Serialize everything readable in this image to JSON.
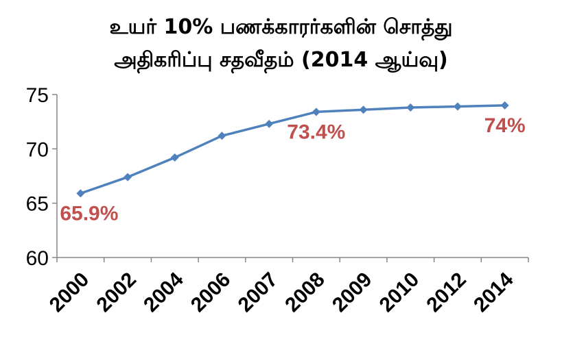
{
  "chart_data": {
    "type": "line",
    "title_line1": "உயர் 10% பணக்காரர்களின் சொத்து",
    "title_line2": "அதிகரிப்பு சதவீதம் (2014 ஆய்வு)",
    "categories": [
      "2000",
      "2002",
      "2004",
      "2006",
      "2007",
      "2008",
      "2009",
      "2010",
      "2012",
      "2014"
    ],
    "values": [
      65.9,
      67.4,
      69.2,
      71.2,
      72.3,
      73.4,
      73.6,
      73.8,
      73.9,
      74.0
    ],
    "ylim": [
      60,
      75
    ],
    "yticks": [
      "60",
      "65",
      "70",
      "75"
    ],
    "ytick_values": [
      60,
      65,
      70,
      75
    ],
    "grid": false,
    "line_color": "#4f81bd",
    "label_color": "#c0504d",
    "data_labels": [
      {
        "index": 0,
        "text": "65.9%"
      },
      {
        "index": 5,
        "text": "73.4%"
      },
      {
        "index": 9,
        "text": "74%"
      }
    ]
  }
}
